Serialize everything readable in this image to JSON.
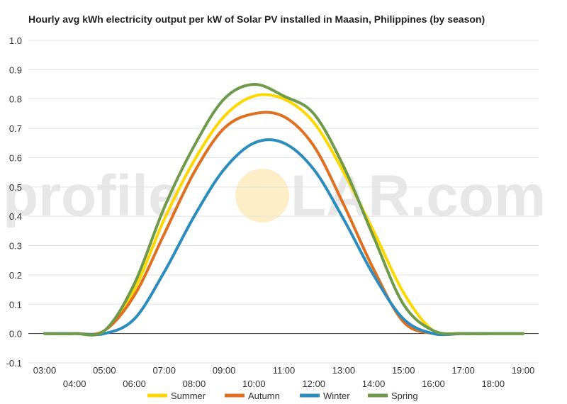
{
  "watermark": {
    "left": "profile",
    "right": "LAR.com"
  },
  "chart_data": {
    "type": "line",
    "title": "Hourly avg kWh electricity output per kW of Solar PV installed in Maasin, Philippines (by season)",
    "xlabel": "",
    "ylabel": "",
    "x": [
      "03:00",
      "04:00",
      "05:00",
      "06:00",
      "07:00",
      "08:00",
      "09:00",
      "10:00",
      "11:00",
      "12:00",
      "13:00",
      "14:00",
      "15:00",
      "16:00",
      "17:00",
      "18:00",
      "19:00"
    ],
    "ylim": [
      -0.1,
      1.0
    ],
    "yticks": [
      "-0.1",
      "0.0",
      "0.1",
      "0.2",
      "0.3",
      "0.4",
      "0.5",
      "0.6",
      "0.7",
      "0.8",
      "0.9",
      "1.0"
    ],
    "grid": true,
    "legend_position": "bottom",
    "series": [
      {
        "name": "Summer",
        "color": "#FFD700",
        "values": [
          0,
          0,
          0.01,
          0.15,
          0.39,
          0.59,
          0.74,
          0.81,
          0.8,
          0.72,
          0.55,
          0.35,
          0.14,
          0.01,
          0,
          0,
          0
        ]
      },
      {
        "name": "Autumn",
        "color": "#E07020",
        "values": [
          0,
          0,
          0.01,
          0.13,
          0.34,
          0.55,
          0.7,
          0.75,
          0.74,
          0.64,
          0.44,
          0.22,
          0.04,
          0,
          0,
          0,
          0
        ]
      },
      {
        "name": "Winter",
        "color": "#2B8CBE",
        "values": [
          0,
          0,
          0,
          0.05,
          0.21,
          0.4,
          0.56,
          0.65,
          0.65,
          0.56,
          0.39,
          0.2,
          0.05,
          0,
          0,
          0,
          0
        ]
      },
      {
        "name": "Spring",
        "color": "#6F9A4A",
        "values": [
          0,
          0,
          0.01,
          0.17,
          0.43,
          0.64,
          0.8,
          0.85,
          0.81,
          0.75,
          0.57,
          0.33,
          0.1,
          0.01,
          0,
          0,
          0
        ]
      }
    ]
  }
}
